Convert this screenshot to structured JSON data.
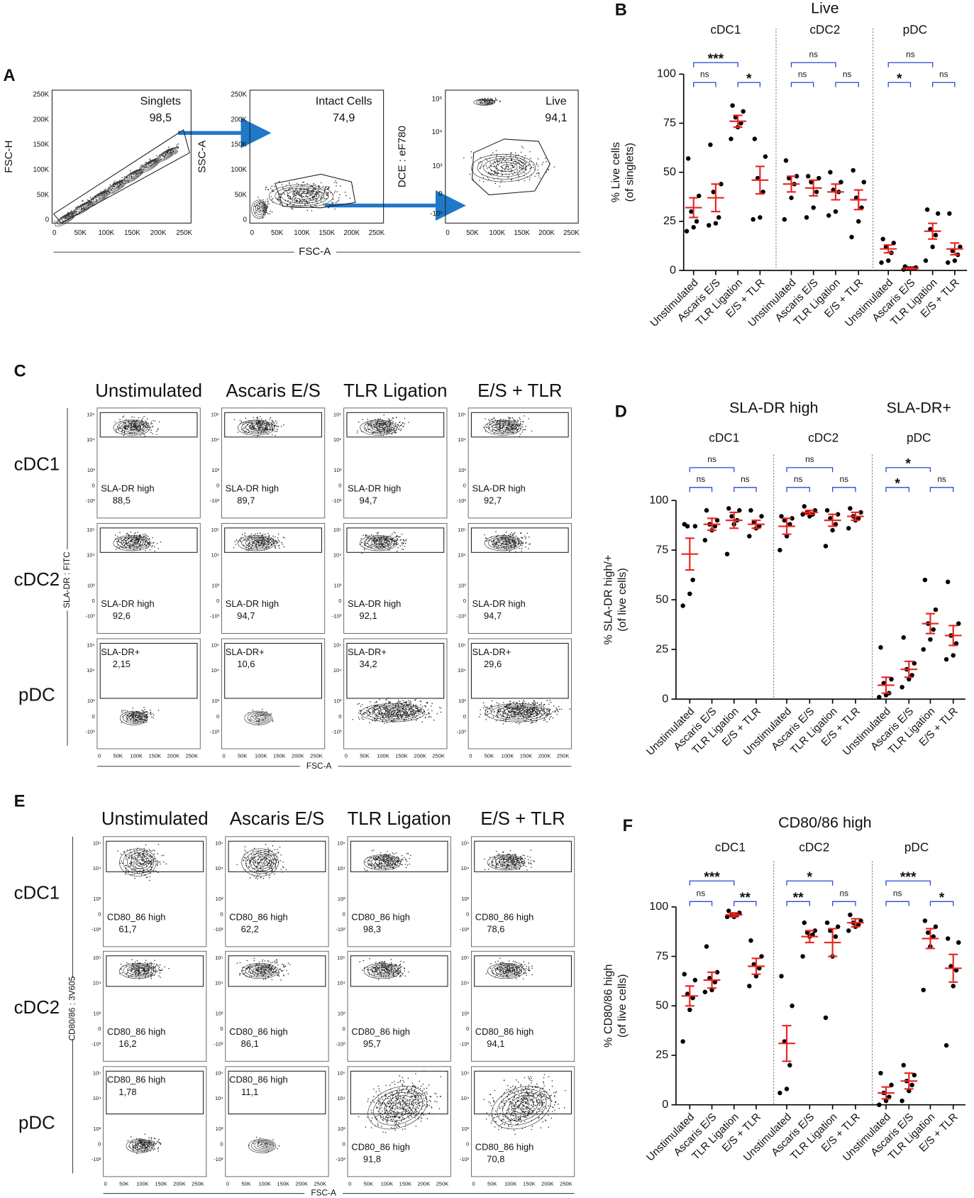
{
  "flow_a": {
    "letter": "A",
    "xlabel": "FSC-A",
    "plots": [
      {
        "ylabel": "FSC-H",
        "gate": "Singlets",
        "value": "98,5"
      },
      {
        "ylabel": "SSC-A",
        "gate": "Intact Cells",
        "value": "74,9"
      },
      {
        "ylabel": "DCE : eF780",
        "gate": "Live",
        "value": "94,1"
      }
    ],
    "lin_ticks": [
      "0",
      "50K",
      "100K",
      "150K",
      "200K",
      "250K"
    ],
    "log_ticks": [
      "-10³",
      "0",
      "10³",
      "10⁴",
      "10⁵"
    ]
  },
  "flow_c": {
    "letter": "C",
    "ylabel": "SLA-DR : FITC",
    "xlabel": "FSC-A",
    "columns": [
      "Unstimulated",
      "Ascaris E/S",
      "TLR Ligation",
      "E/S + TLR"
    ],
    "rows": [
      "cDC1",
      "cDC2",
      "pDC"
    ],
    "lin_ticks": [
      "0",
      "50K",
      "100K",
      "150K",
      "200K",
      "250K"
    ],
    "log_ticks": [
      "-10³",
      "0",
      "10³",
      "10⁴",
      "10⁵"
    ],
    "gates": [
      [
        {
          "name": "SLA-DR high",
          "value": "88,5"
        },
        {
          "name": "SLA-DR high",
          "value": "89,7"
        },
        {
          "name": "SLA-DR high",
          "value": "94,7"
        },
        {
          "name": "SLA-DR high",
          "value": "92,7"
        }
      ],
      [
        {
          "name": "SLA-DR high",
          "value": "92,6"
        },
        {
          "name": "SLA-DR high",
          "value": "94,7"
        },
        {
          "name": "SLA-DR high",
          "value": "92,1"
        },
        {
          "name": "SLA-DR high",
          "value": "94,7"
        }
      ],
      [
        {
          "name": "SLA-DR+",
          "value": "2,15"
        },
        {
          "name": "SLA-DR+",
          "value": "10,6"
        },
        {
          "name": "SLA-DR+",
          "value": "34,2"
        },
        {
          "name": "SLA-DR+",
          "value": "29,6"
        }
      ]
    ]
  },
  "flow_e": {
    "letter": "E",
    "ylabel": "CD80/86 : 3V605",
    "xlabel": "FSC-A",
    "columns": [
      "Unstimulated",
      "Ascaris E/S",
      "TLR Ligation",
      "E/S + TLR"
    ],
    "rows": [
      "cDC1",
      "cDC2",
      "pDC"
    ],
    "lin_ticks": [
      "0",
      "50K",
      "100K",
      "150K",
      "200K",
      "250K"
    ],
    "log_ticks": [
      "-10³",
      "0",
      "10³",
      "10⁴",
      "10⁵"
    ],
    "gates": [
      [
        {
          "name": "CD80_86 high",
          "value": "61,7"
        },
        {
          "name": "CD80_86 high",
          "value": "62,2"
        },
        {
          "name": "CD80_86 high",
          "value": "98,3"
        },
        {
          "name": "CD80_86 high",
          "value": "78,6"
        }
      ],
      [
        {
          "name": "CD80_86 high",
          "value": "16,2"
        },
        {
          "name": "CD80_86 high",
          "value": "86,1"
        },
        {
          "name": "CD80_86 high",
          "value": "95,7"
        },
        {
          "name": "CD80_86 high",
          "value": "94,1"
        }
      ],
      [
        {
          "name": "CD80_86 high",
          "value": "1,78"
        },
        {
          "name": "CD80_86 high",
          "value": "11,1"
        },
        {
          "name": "CD80_86 high",
          "value": "91,8"
        },
        {
          "name": "CD80_86 high",
          "value": "70,8"
        }
      ]
    ]
  },
  "chart_data": [
    {
      "type": "scatter",
      "panel": "B",
      "title": "Live",
      "ylabel": [
        "% Live cells",
        "(of singlets)"
      ],
      "ylim": [
        0,
        100
      ],
      "yticks": [
        0,
        25,
        50,
        75,
        100
      ],
      "point_color": "#000000",
      "mean_color": "#e8251f",
      "bracket_color": "#2a45d8",
      "groups": [
        {
          "name": "cDC1",
          "categories": [
            "Unstimulated",
            "Ascaris E/S",
            "TLR Ligation",
            "E/S + TLR"
          ],
          "points": [
            [
              57,
              38,
              30,
              25,
              22,
              20
            ],
            [
              64,
              44,
              40,
              27,
              24,
              23
            ],
            [
              84,
              81,
              78,
              75,
              73,
              67
            ],
            [
              67,
              58,
              47,
              40,
              27,
              26
            ]
          ],
          "mean": [
            32,
            37,
            76,
            46
          ],
          "sem": [
            5,
            7,
            3,
            7
          ],
          "significance": [
            "***",
            "ns",
            "*"
          ]
        },
        {
          "name": "cDC2",
          "categories": [
            "Unstimulated",
            "Ascaris E/S",
            "TLR Ligation",
            "E/S + TLR"
          ],
          "points": [
            [
              56,
              48,
              47,
              44,
              37,
              26
            ],
            [
              48,
              47,
              45,
              40,
              32,
              27
            ],
            [
              50,
              45,
              41,
              40,
              30,
              28
            ],
            [
              51,
              45,
              37,
              32,
              25,
              17
            ]
          ],
          "mean": [
            44,
            42,
            40,
            36
          ],
          "sem": [
            4,
            4,
            4,
            5
          ],
          "significance": [
            "ns",
            "ns",
            "ns"
          ]
        },
        {
          "name": "pDC",
          "categories": [
            "Unstimulated",
            "Ascaris E/S",
            "TLR Ligation",
            "E/S + TLR"
          ],
          "points": [
            [
              16,
              14,
              12,
              9,
              5,
              4
            ],
            [
              2,
              1.5,
              1,
              1,
              1,
              0.5
            ],
            [
              31,
              29,
              21,
              18,
              12,
              5
            ],
            [
              29,
              12,
              10,
              8,
              5,
              4
            ]
          ],
          "mean": [
            11,
            1,
            20,
            11
          ],
          "sem": [
            2,
            0.3,
            4,
            3
          ],
          "significance": [
            "ns",
            "*",
            "ns"
          ]
        }
      ]
    },
    {
      "type": "scatter",
      "panel": "D",
      "headers": [
        "SLA-DR high",
        "SLA-DR+"
      ],
      "ylabel": [
        "% SLA-DR high/+",
        "(of live cells)"
      ],
      "ylim": [
        0,
        100
      ],
      "yticks": [
        0,
        25,
        50,
        75,
        100
      ],
      "point_color": "#000000",
      "mean_color": "#e8251f",
      "bracket_color": "#2a45d8",
      "groups": [
        {
          "name": "cDC1",
          "categories": [
            "Unstimulated",
            "Ascaris E/S",
            "TLR Ligation",
            "E/S + TLR"
          ],
          "points": [
            [
              88,
              87,
              87,
              60,
              53,
              47
            ],
            [
              95,
              90,
              88,
              87,
              85,
              80
            ],
            [
              96,
              95,
              92,
              90,
              88,
              73
            ],
            [
              95,
              92,
              89,
              87,
              86,
              82
            ]
          ],
          "mean": [
            73,
            88,
            90,
            88
          ],
          "sem": [
            8,
            3,
            4,
            2
          ],
          "significance": [
            "ns",
            "ns",
            "ns"
          ]
        },
        {
          "name": "cDC2",
          "categories": [
            "Unstimulated",
            "Ascaris E/S",
            "TLR Ligation",
            "E/S + TLR"
          ],
          "points": [
            [
              92,
              91,
              90,
              88,
              82,
              75
            ],
            [
              97,
              95,
              94,
              93,
              92,
              93
            ],
            [
              95,
              93,
              91,
              88,
              85,
              77
            ],
            [
              96,
              94,
              92,
              91,
              90,
              86
            ]
          ],
          "mean": [
            87,
            94,
            90,
            92
          ],
          "sem": [
            4,
            1,
            3,
            2
          ],
          "significance": [
            "ns",
            "ns",
            "ns"
          ]
        },
        {
          "name": "pDC",
          "categories": [
            "Unstimulated",
            "Ascaris E/S",
            "TLR Ligation",
            "E/S + TLR"
          ],
          "points": [
            [
              26,
              10,
              8,
              3,
              2,
              1
            ],
            [
              31,
              18,
              15,
              12,
              10,
              6
            ],
            [
              60,
              45,
              38,
              35,
              30,
              25
            ],
            [
              59,
              38,
              32,
              28,
              22,
              20
            ]
          ],
          "mean": [
            7,
            15,
            38,
            32
          ],
          "sem": [
            4,
            4,
            5,
            5
          ],
          "significance": [
            "*",
            "*",
            "ns"
          ]
        }
      ]
    },
    {
      "type": "scatter",
      "panel": "F",
      "title": "CD80/86 high",
      "ylabel": [
        "% CD80/86 high",
        "(of live cells)"
      ],
      "ylim": [
        0,
        100
      ],
      "yticks": [
        0,
        25,
        50,
        75,
        100
      ],
      "point_color": "#000000",
      "mean_color": "#e8251f",
      "bracket_color": "#2a45d8",
      "groups": [
        {
          "name": "cDC1",
          "categories": [
            "Unstimulated",
            "Ascaris E/S",
            "TLR Ligation",
            "E/S + TLR"
          ],
          "points": [
            [
              66,
              63,
              56,
              54,
              48,
              32
            ],
            [
              80,
              67,
              64,
              62,
              58,
              57
            ],
            [
              98,
              97,
              96,
              96,
              95,
              95
            ],
            [
              83,
              75,
              71,
              69,
              65,
              60
            ]
          ],
          "mean": [
            55,
            63,
            96,
            70
          ],
          "sem": [
            5,
            4,
            1,
            4
          ],
          "significance": [
            "***",
            "ns",
            "**"
          ]
        },
        {
          "name": "cDC2",
          "categories": [
            "Unstimulated",
            "Ascaris E/S",
            "TLR Ligation",
            "E/S + TLR"
          ],
          "points": [
            [
              65,
              50,
              32,
              20,
              8,
              6
            ],
            [
              92,
              88,
              87,
              86,
              85,
              75
            ],
            [
              92,
              90,
              88,
              85,
              75,
              44
            ],
            [
              96,
              93,
              92,
              91,
              90,
              88
            ]
          ],
          "mean": [
            31,
            85,
            82,
            92
          ],
          "sem": [
            9,
            3,
            7,
            2
          ],
          "significance": [
            "*",
            "**",
            "ns"
          ]
        },
        {
          "name": "pDC",
          "categories": [
            "Unstimulated",
            "Ascaris E/S",
            "TLR Ligation",
            "E/S + TLR"
          ],
          "points": [
            [
              16,
              10,
              6,
              4,
              2,
              0
            ],
            [
              20,
              15,
              12,
              10,
              7,
              2
            ],
            [
              93,
              90,
              87,
              85,
              80,
              58
            ],
            [
              84,
              82,
              70,
              68,
              60,
              30
            ]
          ],
          "mean": [
            6,
            12,
            84,
            69
          ],
          "sem": [
            3,
            4,
            5,
            7
          ],
          "significance": [
            "***",
            "ns",
            "*"
          ]
        }
      ]
    }
  ]
}
